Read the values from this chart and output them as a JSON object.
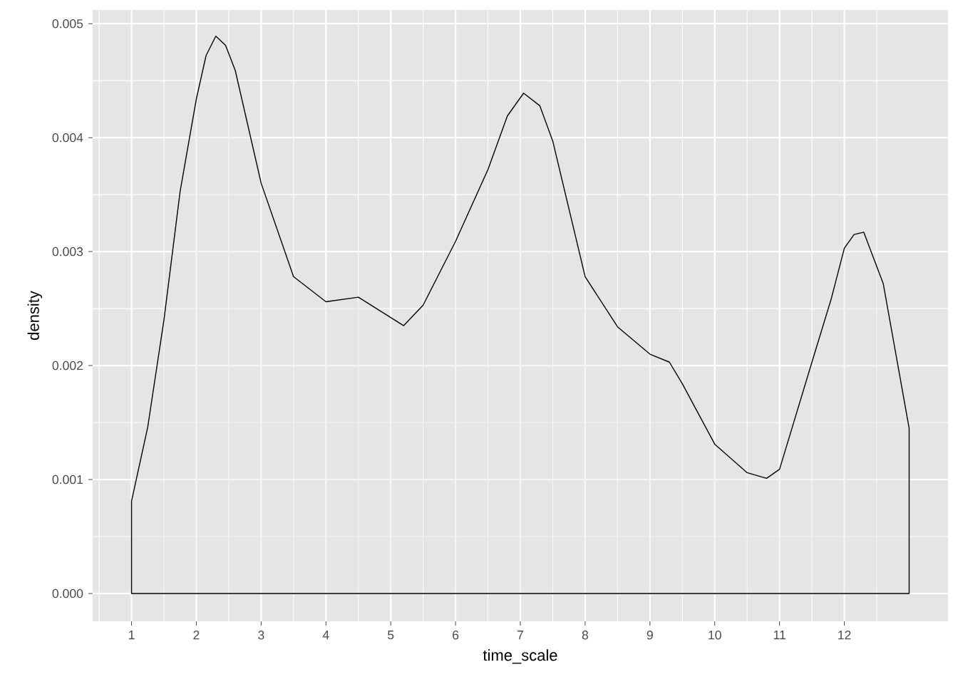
{
  "chart_data": {
    "type": "area",
    "xlabel": "time_scale",
    "ylabel": "density",
    "grid": true,
    "xlim": [
      0.4,
      13.6
    ],
    "ylim": [
      -0.000244,
      0.00512
    ],
    "xticks": [
      1,
      2,
      3,
      4,
      5,
      6,
      7,
      8,
      9,
      10,
      11,
      12
    ],
    "yticks": [
      {
        "value": 0,
        "label": "0.000"
      },
      {
        "value": 0.001,
        "label": "0.001"
      },
      {
        "value": 0.002,
        "label": "0.002"
      },
      {
        "value": 0.003,
        "label": "0.003"
      },
      {
        "value": 0.004,
        "label": "0.004"
      },
      {
        "value": 0.005,
        "label": "0.005"
      }
    ],
    "series": [
      {
        "color": "#000000",
        "x": [
          1,
          1.25,
          1.5,
          1.75,
          2,
          2.15,
          2.3,
          2.45,
          2.6,
          3,
          3.5,
          4,
          4.5,
          5.2,
          5.5,
          6,
          6.5,
          6.8,
          7.05,
          7.3,
          7.5,
          8,
          8.5,
          9,
          9.3,
          9.5,
          10,
          10.5,
          10.8,
          11,
          11.5,
          11.8,
          12,
          12.15,
          12.3,
          12.6,
          13
        ],
        "values": [
          0.00081,
          0.00146,
          0.0024,
          0.00353,
          0.00434,
          0.00472,
          0.00489,
          0.00481,
          0.00459,
          0.0036,
          0.00278,
          0.00256,
          0.0026,
          0.00235,
          0.00253,
          0.00309,
          0.00372,
          0.00419,
          0.00439,
          0.00428,
          0.00397,
          0.00278,
          0.00234,
          0.0021,
          0.00203,
          0.00184,
          0.00131,
          0.00106,
          0.00101,
          0.00109,
          0.00203,
          0.00259,
          0.00303,
          0.00315,
          0.00317,
          0.00272,
          0.00145
        ]
      }
    ]
  }
}
